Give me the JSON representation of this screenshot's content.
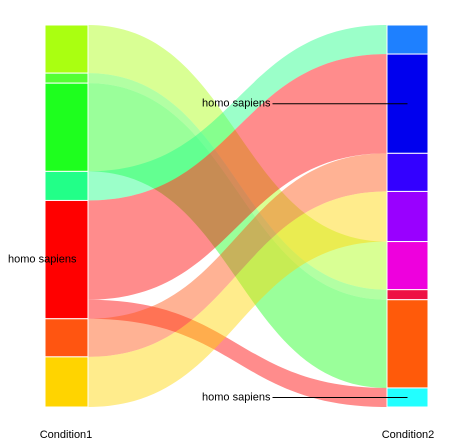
{
  "chart_data": {
    "type": "sankey",
    "axis_labels": [
      "Condition1",
      "Condition2"
    ],
    "left_nodes": {
      "labels": [
        null,
        null,
        null,
        null,
        "homo sapiens",
        null,
        null
      ],
      "colors": [
        "#aaff11",
        "#55ff33",
        "#1eff1e",
        "#22ff88",
        "#ff0000",
        "#ff5511",
        "#ffd400"
      ]
    },
    "right_nodes": {
      "labels": [
        null,
        "homo sapiens",
        null,
        null,
        null,
        null,
        null,
        "homo sapiens"
      ],
      "colors": [
        "#1e80ff",
        "#0000ee",
        "#3300ff",
        "#9900ff",
        "#ee00dd",
        "#ee1144",
        "#ff5a0a",
        "#22ffff"
      ]
    },
    "links": {
      "source": [
        0,
        1,
        2,
        3,
        4,
        4,
        5,
        6
      ],
      "target": [
        4,
        5,
        6,
        0,
        1,
        7,
        2,
        3
      ],
      "values": [
        48,
        10,
        88,
        29,
        99,
        19,
        38,
        50
      ]
    }
  }
}
